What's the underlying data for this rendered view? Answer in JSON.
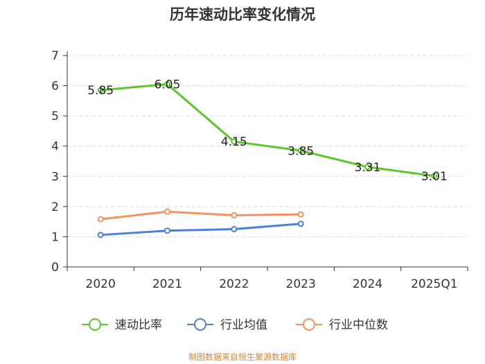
{
  "chart_data": {
    "type": "line",
    "title": "历年速动比率变化情况",
    "categories": [
      "2020",
      "2021",
      "2022",
      "2023",
      "2024",
      "2025Q1"
    ],
    "ylim": [
      0,
      7
    ],
    "yticks": [
      "0",
      "1",
      "2",
      "3",
      "4",
      "5",
      "6",
      "7"
    ],
    "xlabel": "",
    "ylabel": "",
    "grid": "horizontal dashed",
    "legend_position": "bottom",
    "series": [
      {
        "name": "速动比率",
        "color": "#5dc72b",
        "values": [
          5.85,
          6.05,
          4.15,
          3.85,
          3.31,
          3.01
        ],
        "labels": [
          "5.85",
          "6.05",
          "4.15",
          "3.85",
          "3.31",
          "3.01"
        ]
      },
      {
        "name": "行业均值",
        "color": "#4a7fe0",
        "values": [
          1.06,
          1.2,
          1.25,
          1.43,
          null,
          null
        ]
      },
      {
        "name": "行业中位数",
        "color": "#f5925e",
        "values": [
          1.58,
          1.83,
          1.71,
          1.74,
          null,
          null
        ]
      }
    ],
    "source": "制图数据来自恒生聚源数据库"
  }
}
